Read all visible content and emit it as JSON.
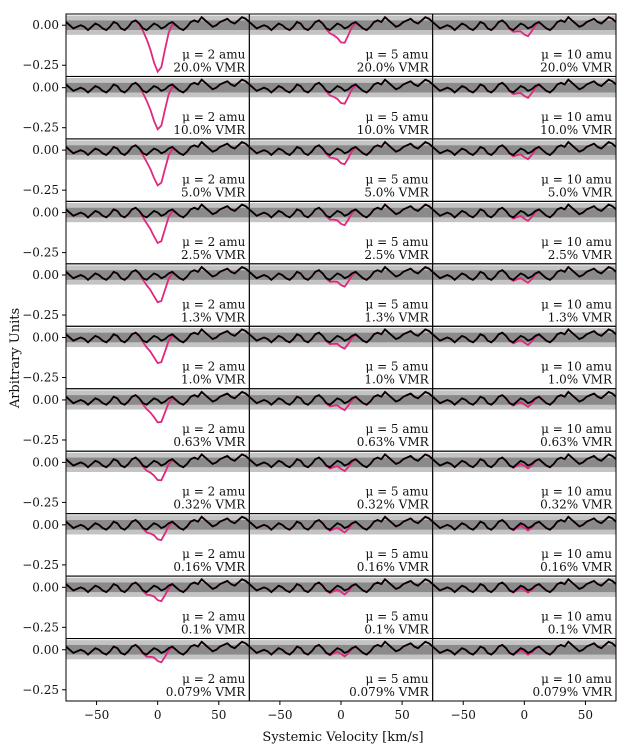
{
  "figure": {
    "xlabel": "Systemic Velocity [km/s]",
    "ylabel": "Arbitrary Units"
  },
  "colors": {
    "observed": "#000000",
    "model": "#e0287f",
    "band_outer": "#c4c4c4",
    "band_inner": "#8a8a8a"
  },
  "chart_data": {
    "type": "line",
    "layout": "grid of 11 rows x 3 columns",
    "x_ticks": [
      -50,
      0,
      50
    ],
    "x_tick_labels": [
      "−50",
      "0",
      "50"
    ],
    "xlim": [
      -75,
      75
    ],
    "y_ticks": [
      0.0,
      -0.25
    ],
    "y_tick_labels": [
      "0.00",
      "−0.25"
    ],
    "ylim": [
      -0.32,
      0.07
    ],
    "band_outer": [
      -0.06,
      0.06
    ],
    "band_inner": [
      -0.03,
      0.03
    ],
    "columns": [
      {
        "mu_label": "μ = 2 amu",
        "scale": 1.0
      },
      {
        "mu_label": "μ = 5 amu",
        "scale": 0.37
      },
      {
        "mu_label": "μ = 10 amu",
        "scale": 0.2
      }
    ],
    "rows": [
      {
        "vmr_label": "20.0% VMR",
        "dip_depth": 0.29
      },
      {
        "vmr_label": "10.0% VMR",
        "dip_depth": 0.26
      },
      {
        "vmr_label": "5.0% VMR",
        "dip_depth": 0.22
      },
      {
        "vmr_label": "2.5% VMR",
        "dip_depth": 0.19
      },
      {
        "vmr_label": "1.3% VMR",
        "dip_depth": 0.17
      },
      {
        "vmr_label": "1.0% VMR",
        "dip_depth": 0.16
      },
      {
        "vmr_label": "0.63% VMR",
        "dip_depth": 0.14
      },
      {
        "vmr_label": "0.32% VMR",
        "dip_depth": 0.11
      },
      {
        "vmr_label": "0.16% VMR",
        "dip_depth": 0.09
      },
      {
        "vmr_label": "0.1% VMR",
        "dip_depth": 0.08
      },
      {
        "vmr_label": "0.079% VMR",
        "dip_depth": 0.07
      }
    ],
    "observed_series": {
      "x": [
        -75,
        -72,
        -69,
        -66,
        -63,
        -60,
        -57,
        -54,
        -51,
        -48,
        -45,
        -42,
        -39,
        -36,
        -33,
        -30,
        -27,
        -24,
        -21,
        -18,
        -15,
        -12,
        -9,
        -6,
        -3,
        0,
        3,
        6,
        9,
        12,
        15,
        18,
        21,
        24,
        27,
        30,
        33,
        36,
        39,
        42,
        45,
        48,
        51,
        54,
        57,
        60,
        63,
        66,
        69,
        72,
        75
      ],
      "y": [
        0.02,
        0.0,
        -0.02,
        -0.01,
        0.0,
        -0.01,
        -0.03,
        -0.01,
        0.01,
        0.0,
        -0.02,
        -0.03,
        -0.01,
        0.02,
        0.01,
        -0.02,
        -0.03,
        -0.01,
        0.02,
        0.03,
        0.01,
        -0.02,
        -0.03,
        -0.01,
        0.01,
        0.0,
        -0.02,
        -0.01,
        0.01,
        0.02,
        0.0,
        -0.02,
        -0.03,
        -0.01,
        0.02,
        0.03,
        0.02,
        0.05,
        0.03,
        0.01,
        -0.01,
        0.0,
        0.02,
        0.03,
        0.04,
        0.02,
        0.01,
        0.03,
        0.05,
        0.04,
        0.02
      ]
    }
  }
}
